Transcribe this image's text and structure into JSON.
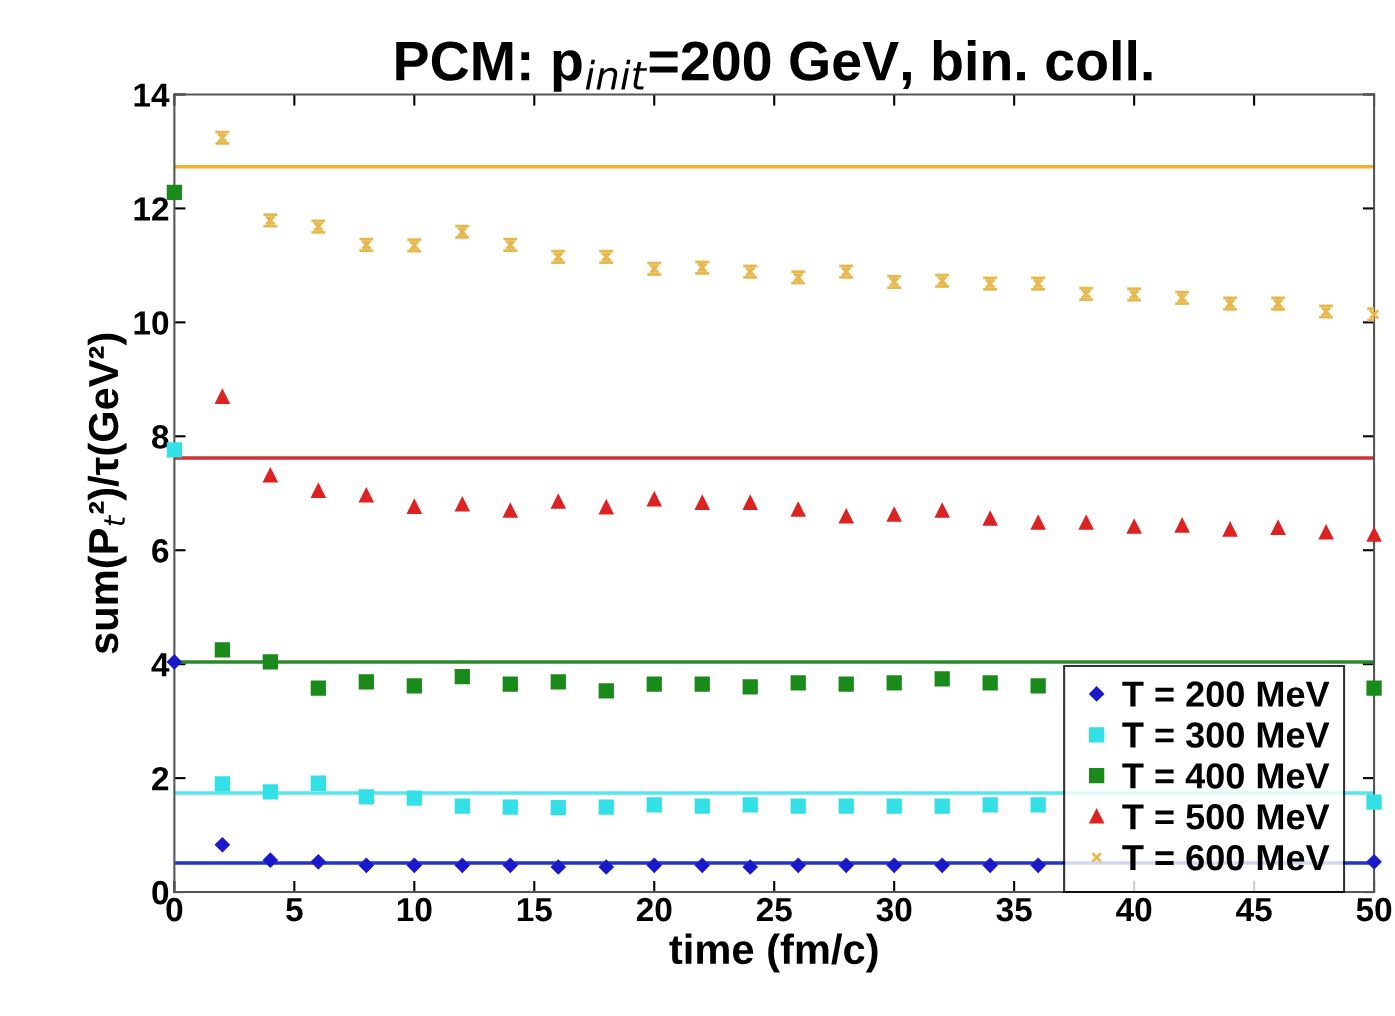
{
  "chart_data": {
    "type": "scatter",
    "title": "PCM: p$_{init}$=200 GeV, bin. coll.",
    "xlabel": "time (fm/c)",
    "ylabel": "sum(P$_{t}$²)/τ(GeV²)",
    "x": [
      0,
      2,
      4,
      6,
      8,
      10,
      12,
      14,
      16,
      18,
      20,
      22,
      24,
      26,
      28,
      30,
      32,
      34,
      36,
      38,
      40,
      42,
      44,
      46,
      48,
      50
    ],
    "xlim": [
      0,
      50
    ],
    "xticks": [
      0,
      5,
      10,
      15,
      20,
      25,
      30,
      35,
      40,
      45,
      50
    ],
    "ylim": [
      0,
      14
    ],
    "yticks": [
      0,
      2,
      4,
      6,
      8,
      10,
      12,
      14
    ],
    "grid": false,
    "legend": "bottom right",
    "series": [
      {
        "name": "T = 200 MeV",
        "color": "#1a1acc",
        "marker": "diamond",
        "values": [
          4.04,
          0.83,
          0.56,
          0.53,
          0.47,
          0.47,
          0.47,
          0.47,
          0.44,
          0.44,
          0.47,
          0.47,
          0.44,
          0.47,
          0.47,
          0.47,
          0.47,
          0.47,
          0.47,
          null,
          null,
          null,
          null,
          null,
          null,
          0.53
        ]
      },
      {
        "name": "T = 300 MeV",
        "color": "#33e0e6",
        "marker": "square",
        "values": [
          7.76,
          1.9,
          1.76,
          1.91,
          1.67,
          1.65,
          1.51,
          1.49,
          1.48,
          1.49,
          1.53,
          1.51,
          1.53,
          1.51,
          1.51,
          1.51,
          1.51,
          1.53,
          1.53,
          null,
          null,
          null,
          null,
          null,
          null,
          1.58
        ]
      },
      {
        "name": "T = 400 MeV",
        "color": "#1a8a1a",
        "marker": "square",
        "values": [
          12.28,
          4.25,
          4.04,
          3.58,
          3.69,
          3.62,
          3.78,
          3.65,
          3.69,
          3.53,
          3.65,
          3.65,
          3.6,
          3.67,
          3.65,
          3.67,
          3.74,
          3.67,
          3.62,
          null,
          null,
          null,
          null,
          null,
          null,
          3.58
        ]
      },
      {
        "name": "T = 500 MeV",
        "color": "#dd2222",
        "marker": "triangle",
        "values": [
          null,
          8.69,
          7.31,
          7.04,
          6.96,
          6.76,
          6.8,
          6.69,
          6.85,
          6.75,
          6.89,
          6.83,
          6.83,
          6.71,
          6.59,
          6.62,
          6.69,
          6.55,
          6.48,
          6.48,
          6.41,
          6.43,
          6.36,
          6.39,
          6.31,
          6.27
        ]
      },
      {
        "name": "T = 600 MeV",
        "color": "#e6b84d",
        "marker": "cross",
        "errors": [
          null,
          0.1,
          0.1,
          0.1,
          0.1,
          0.1,
          0.1,
          0.1,
          0.1,
          0.1,
          0.1,
          0.1,
          0.1,
          0.1,
          0.1,
          0.1,
          0.1,
          0.1,
          0.1,
          0.1,
          0.1,
          0.1,
          0.1,
          0.1,
          0.1,
          0.1
        ],
        "values": [
          null,
          13.24,
          11.79,
          11.68,
          11.36,
          11.35,
          11.59,
          11.36,
          11.15,
          11.15,
          10.94,
          10.96,
          10.89,
          10.79,
          10.89,
          10.71,
          10.73,
          10.68,
          10.68,
          10.5,
          10.49,
          10.43,
          10.33,
          10.33,
          10.19,
          10.14
        ]
      }
    ],
    "ref_lines": [
      {
        "axis": "y",
        "value": 0.51,
        "color": "#2233cc"
      },
      {
        "axis": "y",
        "value": 1.74,
        "color": "#55e6ee"
      },
      {
        "axis": "y",
        "value": 4.04,
        "color": "#2a8a2a"
      },
      {
        "axis": "y",
        "value": 7.62,
        "color": "#cc3333"
      },
      {
        "axis": "y",
        "value": 12.73,
        "color": "#f0b030"
      }
    ]
  }
}
